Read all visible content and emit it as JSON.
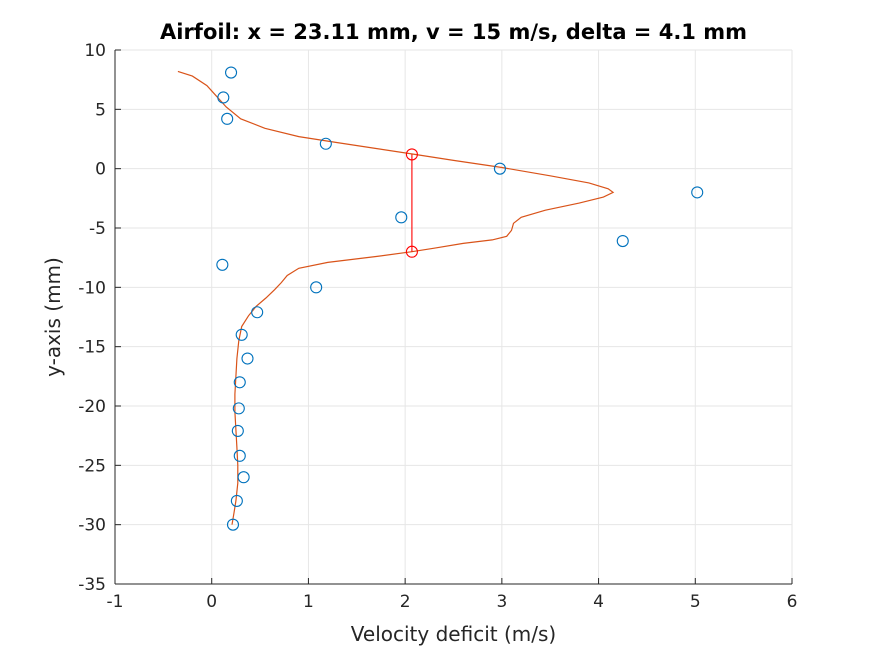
{
  "chart_data": {
    "type": "scatter",
    "title": "Airfoil: x = 23.11 mm, v = 15 m/s, delta = 4.1 mm",
    "xlabel": "Velocity deficit (m/s)",
    "ylabel": "y-axis (mm)",
    "xlim": [
      -1,
      6
    ],
    "ylim": [
      -35,
      10
    ],
    "xticks": [
      "-1",
      "0",
      "1",
      "2",
      "3",
      "4",
      "5",
      "6"
    ],
    "yticks": [
      "10",
      "5",
      "0",
      "-5",
      "-10",
      "-15",
      "-20",
      "-25",
      "-30",
      "-35"
    ],
    "grid": true,
    "colors": {
      "measured": "#0072BD",
      "fit": "#D95319",
      "width": "#FF0000",
      "grid": "#e6e6e6",
      "axis": "#262626"
    },
    "series": [
      {
        "type": "scatter",
        "marker": "circle",
        "points": [
          [
            0.2,
            8.1
          ],
          [
            0.12,
            6.0
          ],
          [
            0.16,
            4.2
          ],
          [
            1.18,
            2.1
          ],
          [
            2.98,
            0.0
          ],
          [
            5.02,
            -2.0
          ],
          [
            1.96,
            -4.1
          ],
          [
            4.25,
            -6.1
          ],
          [
            0.11,
            -8.1
          ],
          [
            1.08,
            -10.0
          ],
          [
            0.47,
            -12.1
          ],
          [
            0.31,
            -14.0
          ],
          [
            0.37,
            -16.0
          ],
          [
            0.29,
            -18.0
          ],
          [
            0.28,
            -20.2
          ],
          [
            0.27,
            -22.1
          ],
          [
            0.29,
            -24.2
          ],
          [
            0.33,
            -26.0
          ],
          [
            0.26,
            -28.0
          ],
          [
            0.22,
            -30.0
          ]
        ]
      },
      {
        "type": "line",
        "points": [
          [
            -0.35,
            8.2
          ],
          [
            -0.2,
            7.8
          ],
          [
            -0.05,
            7.0
          ],
          [
            0.05,
            6.1
          ],
          [
            0.15,
            5.2
          ],
          [
            0.3,
            4.2
          ],
          [
            0.55,
            3.4
          ],
          [
            0.9,
            2.7
          ],
          [
            1.3,
            2.2
          ],
          [
            1.7,
            1.7
          ],
          [
            2.1,
            1.2
          ],
          [
            2.5,
            0.7
          ],
          [
            3.0,
            0.1
          ],
          [
            3.5,
            -0.6
          ],
          [
            3.9,
            -1.2
          ],
          [
            4.1,
            -1.7
          ],
          [
            4.15,
            -2.0
          ],
          [
            4.05,
            -2.4
          ],
          [
            3.8,
            -2.9
          ],
          [
            3.45,
            -3.5
          ],
          [
            3.2,
            -4.1
          ],
          [
            3.12,
            -4.6
          ],
          [
            3.1,
            -5.2
          ],
          [
            3.05,
            -5.7
          ],
          [
            2.9,
            -6.0
          ],
          [
            2.6,
            -6.3
          ],
          [
            2.3,
            -6.7
          ],
          [
            2.07,
            -7.0
          ],
          [
            1.7,
            -7.4
          ],
          [
            1.2,
            -7.9
          ],
          [
            0.9,
            -8.4
          ],
          [
            0.78,
            -9.0
          ],
          [
            0.72,
            -9.6
          ],
          [
            0.65,
            -10.2
          ],
          [
            0.56,
            -10.9
          ],
          [
            0.46,
            -11.6
          ],
          [
            0.38,
            -12.4
          ],
          [
            0.31,
            -13.3
          ],
          [
            0.28,
            -14.5
          ],
          [
            0.26,
            -16.0
          ],
          [
            0.25,
            -17.5
          ],
          [
            0.24,
            -19.0
          ],
          [
            0.24,
            -20.5
          ],
          [
            0.25,
            -22.0
          ],
          [
            0.26,
            -23.5
          ],
          [
            0.27,
            -25.0
          ],
          [
            0.27,
            -26.5
          ],
          [
            0.25,
            -28.0
          ],
          [
            0.23,
            -29.0
          ],
          [
            0.21,
            -30.0
          ]
        ]
      },
      {
        "type": "line-with-circle-endpoints",
        "points": [
          [
            2.07,
            1.2
          ],
          [
            2.07,
            -7.0
          ]
        ]
      }
    ]
  }
}
